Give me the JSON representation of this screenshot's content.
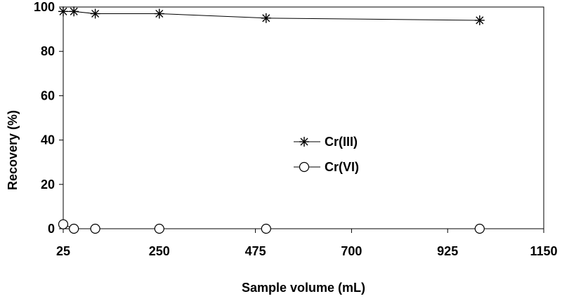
{
  "chart_data": {
    "type": "scatter",
    "xlabel": "Sample volume (mL)",
    "ylabel": "Recovery (%)",
    "xlim": [
      25,
      1150
    ],
    "ylim": [
      0,
      100
    ],
    "xticks": [
      25,
      250,
      475,
      700,
      925,
      1150
    ],
    "yticks": [
      0,
      20,
      40,
      60,
      80,
      100
    ],
    "grid": false,
    "legend_position": "center",
    "series": [
      {
        "name": "Cr(III)",
        "marker": "asterisk",
        "line": true,
        "color": "#000000",
        "x": [
          25,
          50,
          100,
          250,
          500,
          1000
        ],
        "y": [
          98,
          98,
          97,
          97,
          95,
          94
        ]
      },
      {
        "name": "Cr(VI)",
        "marker": "circle",
        "line": true,
        "color": "#000000",
        "x": [
          25,
          50,
          100,
          250,
          500,
          1000
        ],
        "y": [
          2,
          0,
          0,
          0,
          0,
          0
        ]
      }
    ]
  }
}
